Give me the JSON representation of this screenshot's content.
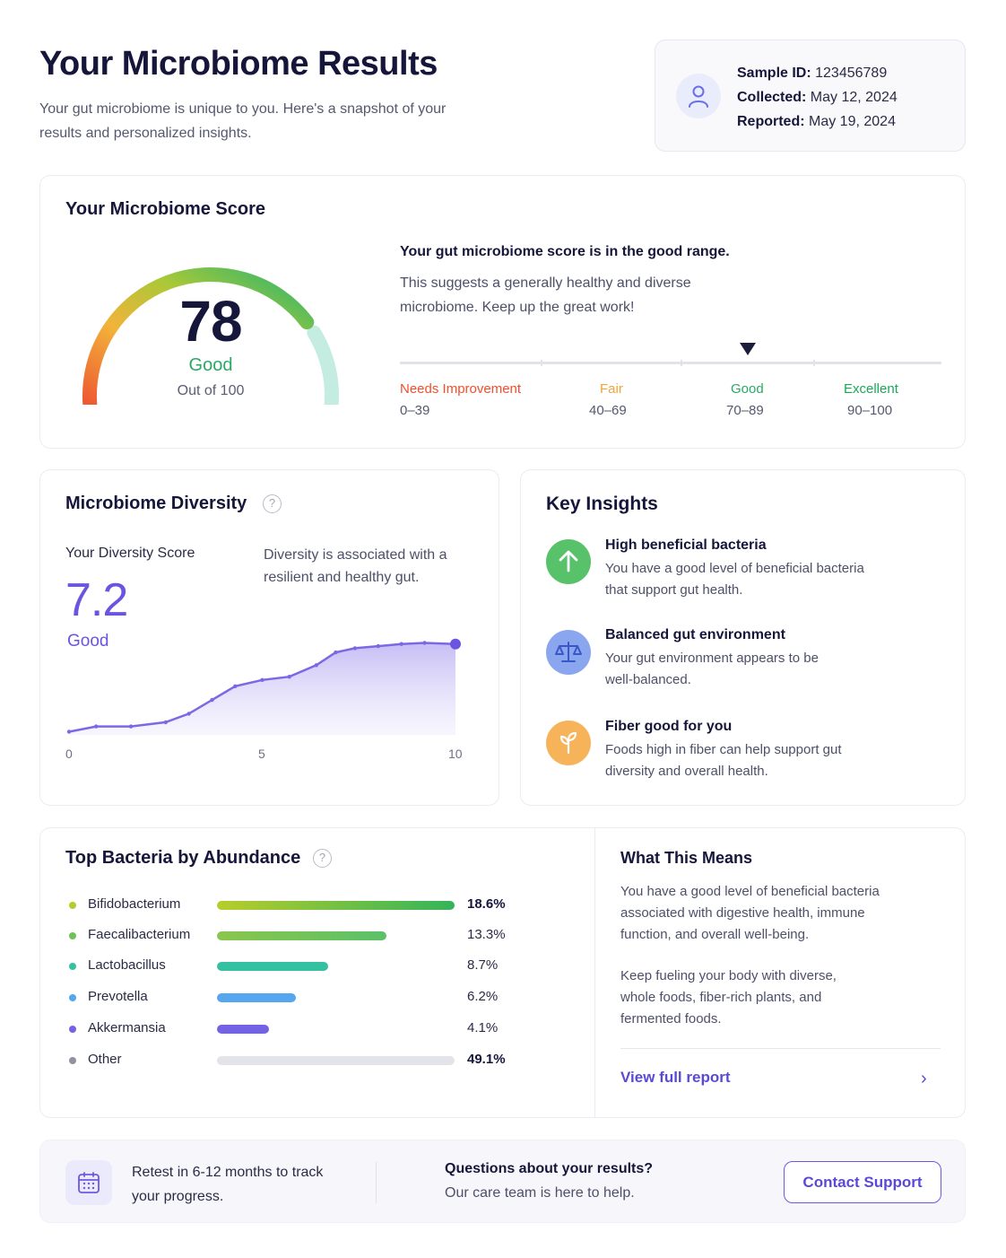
{
  "header": {
    "title": "Your Microbiome Results",
    "subtitle": "Your gut microbiome is unique to you. Here's a snapshot of your results and personalized insights.",
    "sample": {
      "id_label": "Sample ID:",
      "id_value": " 123456789",
      "collected_label": "Collected:",
      "collected_value": " May 12, 2024",
      "reported_label": "Reported:",
      "reported_value": " May 19, 2024"
    }
  },
  "score": {
    "title": "Your Microbiome Score",
    "value": "78",
    "gauge_fraction": 0.78,
    "rating": "Good",
    "out_of": "Out of 100",
    "headline": "Your gut microbiome score is in the good range.",
    "description": "This suggests a generally healthy and diverse microbiome. Keep up the great work!",
    "ranges": [
      {
        "label": "Needs Improvement",
        "range": "0–39",
        "color": "#f0502e"
      },
      {
        "label": "Fair",
        "range": "40–69",
        "color": "#f2a33a"
      },
      {
        "label": "Good",
        "range": "70–89",
        "color": "#2aa866"
      },
      {
        "label": "Excellent",
        "range": "90–100",
        "color": "#1aa858"
      }
    ]
  },
  "diversity": {
    "title": "Microbiome Diversity",
    "help": "?",
    "score_label": "Your Diversity Score",
    "score_value": "7.2",
    "rating": "Good",
    "note": "Diversity is associated with a resilient and healthy gut.",
    "accent": "#6a55e0",
    "axis_ticks": [
      "0",
      "5",
      "10"
    ]
  },
  "chart_data": {
    "type": "area",
    "x": [
      0,
      0.7,
      1.6,
      2.5,
      3.1,
      3.7,
      4.3,
      5.0,
      5.7,
      6.4,
      6.9,
      7.4,
      8.0,
      8.6,
      9.2,
      10.0
    ],
    "values": [
      0.3,
      0.8,
      0.8,
      1.2,
      2.0,
      3.3,
      4.6,
      5.2,
      5.5,
      6.6,
      7.8,
      8.2,
      8.4,
      8.6,
      8.7,
      8.6
    ],
    "xlim": [
      0,
      10
    ],
    "xticks": [
      "0",
      "5",
      "10"
    ]
  },
  "insights": {
    "title": "Key Insights",
    "items": [
      {
        "title": "High beneficial bacteria",
        "text": "You have a good level of beneficial bacteria that support gut health.",
        "icon": "arrow-up-icon",
        "color": "#58c26a"
      },
      {
        "title": "Balanced gut environment",
        "text": "Your gut environment appears to be well-balanced.",
        "icon": "scale-icon",
        "color": "#8aa6ee"
      },
      {
        "title": "Fiber good for you",
        "text": "Foods high in fiber can help support gut diversity and overall health.",
        "icon": "plant-icon",
        "color": "#f7b35a"
      }
    ]
  },
  "bacteria": {
    "title": "Top Bacteria by Abundance",
    "help": "?",
    "items": [
      {
        "name": "Bifidobacterium",
        "pct": "18.6%",
        "value": 18.6,
        "color": "#b4cc2c",
        "bold": true
      },
      {
        "name": "Faecalibacterium",
        "pct": "13.3%",
        "value": 13.3,
        "color": "#6cc456",
        "bold": false
      },
      {
        "name": "Lactobacillus",
        "pct": "8.7%",
        "value": 8.7,
        "color": "#34c1a1",
        "bold": false
      },
      {
        "name": "Prevotella",
        "pct": "6.2%",
        "value": 6.2,
        "color": "#54a7ee",
        "bold": false
      },
      {
        "name": "Akkermansia",
        "pct": "4.1%",
        "value": 4.1,
        "color": "#7462e4",
        "bold": false
      },
      {
        "name": "Other",
        "pct": "49.1%",
        "value": 49.1,
        "color": "#8f92a0",
        "bold": true
      }
    ]
  },
  "meaning": {
    "title": "What This Means",
    "p1": "You have a good level of beneficial bacteria associated with digestive health, immune function, and overall well-being.",
    "p2": "Keep fueling your body with diverse, whole foods, fiber-rich plants, and fermented foods.",
    "link": "View full report",
    "chevron": "›"
  },
  "footer": {
    "retest": "Retest in 6-12 months to track your progress.",
    "question": "Questions about your results?",
    "help": "Our care team is here to help.",
    "button": "Contact Support"
  }
}
